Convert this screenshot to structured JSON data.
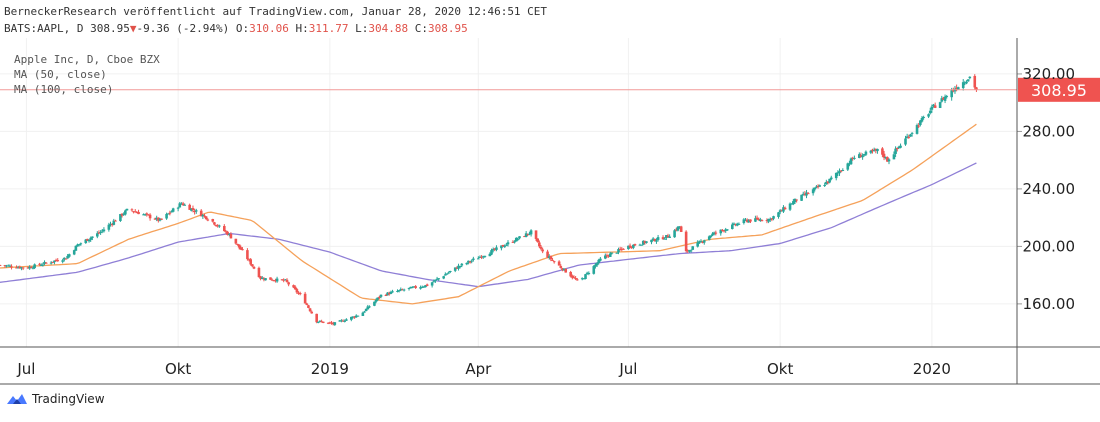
{
  "header": {
    "published_line": "BerneckerResearch veröffentlicht auf TradingView.com, Januar 28, 2020 12:46:51 CET",
    "symbol": "BATS:AAPL, D",
    "last": "308.95",
    "arrow": "▼",
    "change": "-9.36 (-2.94%)",
    "o_label": "O:",
    "o_value": "310.06",
    "h_label": "H:",
    "h_value": "311.77",
    "l_label": "L:",
    "l_value": "304.88",
    "c_label": "C:",
    "c_value": "308.95"
  },
  "legend": {
    "line1": "Apple Inc, D, Cboe BZX",
    "line2": "MA (50, close)",
    "line3": "MA (100, close)"
  },
  "brand": {
    "name": "TradingView",
    "logo_icon": "tradingview-logo-icon"
  },
  "colors": {
    "up": "#26a69a",
    "down": "#ef5350",
    "ma50": "#f5a15a",
    "ma100": "#8f7fd6",
    "price_badge": "#ef5350",
    "price_line": "#f29a98",
    "grid": "#f0f0f0",
    "axis_text": "#222222"
  },
  "chart_data": {
    "type": "candlestick",
    "title": "Apple Inc, D, Cboe BZX",
    "symbol": "BATS:AAPL",
    "ylim": [
      130,
      345
    ],
    "yticks": [
      160,
      200,
      240,
      280,
      320
    ],
    "ytick_labels": [
      "160.00",
      "200.00",
      "240.00",
      "280.00",
      "320.00"
    ],
    "last_price": 308.95,
    "last_price_label": "308.95",
    "x_range": [
      "2018-06-15",
      "2020-02-21"
    ],
    "xticks": [
      {
        "date": "2018-07-01",
        "label": "Jul"
      },
      {
        "date": "2018-10-01",
        "label": "Okt"
      },
      {
        "date": "2019-01-01",
        "label": "2019"
      },
      {
        "date": "2019-04-01",
        "label": "Apr"
      },
      {
        "date": "2019-07-01",
        "label": "Jul"
      },
      {
        "date": "2019-10-01",
        "label": "Okt"
      },
      {
        "date": "2020-01-01",
        "label": "2020"
      }
    ],
    "close_anchors": [
      [
        "2018-06-15",
        187
      ],
      [
        "2018-07-01",
        185
      ],
      [
        "2018-07-25",
        192
      ],
      [
        "2018-08-01",
        201
      ],
      [
        "2018-08-15",
        210
      ],
      [
        "2018-09-01",
        226
      ],
      [
        "2018-09-20",
        218
      ],
      [
        "2018-10-03",
        230
      ],
      [
        "2018-10-20",
        219
      ],
      [
        "2018-11-01",
        208
      ],
      [
        "2018-11-10",
        195
      ],
      [
        "2018-11-20",
        178
      ],
      [
        "2018-12-05",
        176
      ],
      [
        "2018-12-15",
        165
      ],
      [
        "2018-12-24",
        148
      ],
      [
        "2019-01-03",
        146
      ],
      [
        "2019-01-20",
        153
      ],
      [
        "2019-02-01",
        166
      ],
      [
        "2019-02-15",
        170
      ],
      [
        "2019-03-01",
        173
      ],
      [
        "2019-03-20",
        186
      ],
      [
        "2019-04-10",
        197
      ],
      [
        "2019-05-03",
        210
      ],
      [
        "2019-05-10",
        196
      ],
      [
        "2019-06-01",
        175
      ],
      [
        "2019-06-15",
        192
      ],
      [
        "2019-07-01",
        200
      ],
      [
        "2019-07-25",
        207
      ],
      [
        "2019-08-01",
        214
      ],
      [
        "2019-08-05",
        196
      ],
      [
        "2019-08-20",
        208
      ],
      [
        "2019-09-10",
        218
      ],
      [
        "2019-09-25",
        219
      ],
      [
        "2019-10-10",
        232
      ],
      [
        "2019-10-30",
        245
      ],
      [
        "2019-11-15",
        262
      ],
      [
        "2019-11-30",
        267
      ],
      [
        "2019-12-05",
        260
      ],
      [
        "2019-12-20",
        280
      ],
      [
        "2020-01-02",
        297
      ],
      [
        "2020-01-15",
        310
      ],
      [
        "2020-01-24",
        318
      ],
      [
        "2020-01-28",
        309
      ]
    ],
    "ma50_anchors": [
      [
        "2018-06-15",
        185
      ],
      [
        "2018-08-01",
        188
      ],
      [
        "2018-09-01",
        205
      ],
      [
        "2018-10-01",
        216
      ],
      [
        "2018-10-20",
        224
      ],
      [
        "2018-11-15",
        218
      ],
      [
        "2018-12-15",
        190
      ],
      [
        "2019-01-20",
        164
      ],
      [
        "2019-02-20",
        160
      ],
      [
        "2019-03-20",
        165
      ],
      [
        "2019-04-20",
        183
      ],
      [
        "2019-05-20",
        195
      ],
      [
        "2019-06-20",
        196
      ],
      [
        "2019-07-20",
        197
      ],
      [
        "2019-08-20",
        205
      ],
      [
        "2019-09-20",
        208
      ],
      [
        "2019-10-20",
        220
      ],
      [
        "2019-11-20",
        232
      ],
      [
        "2019-12-20",
        253
      ],
      [
        "2020-01-28",
        285
      ]
    ],
    "ma100_anchors": [
      [
        "2018-06-15",
        175
      ],
      [
        "2018-08-01",
        182
      ],
      [
        "2018-09-01",
        192
      ],
      [
        "2018-10-01",
        203
      ],
      [
        "2018-11-01",
        209
      ],
      [
        "2018-12-01",
        205
      ],
      [
        "2019-01-01",
        196
      ],
      [
        "2019-02-01",
        183
      ],
      [
        "2019-03-01",
        177
      ],
      [
        "2019-04-01",
        172
      ],
      [
        "2019-05-01",
        177
      ],
      [
        "2019-06-01",
        187
      ],
      [
        "2019-07-01",
        191
      ],
      [
        "2019-08-01",
        195
      ],
      [
        "2019-09-01",
        197
      ],
      [
        "2019-10-01",
        202
      ],
      [
        "2019-11-01",
        213
      ],
      [
        "2019-12-01",
        228
      ],
      [
        "2020-01-01",
        243
      ],
      [
        "2020-01-28",
        258
      ]
    ]
  }
}
